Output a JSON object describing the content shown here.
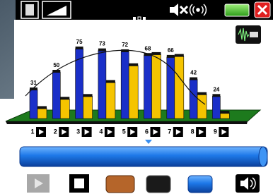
{
  "chart_data": {
    "type": "bar",
    "categories": [
      "1",
      "2",
      "3",
      "4",
      "5",
      "6",
      "7",
      "8",
      "9"
    ],
    "series": [
      {
        "color": "#1a2fc8",
        "values": [
          31,
          50,
          75,
          73,
          72,
          68,
          66,
          42,
          24
        ]
      },
      {
        "color": "#f5c400",
        "values": [
          11,
          21,
          24,
          39,
          57,
          69,
          67,
          26,
          6
        ]
      }
    ]
  }
}
